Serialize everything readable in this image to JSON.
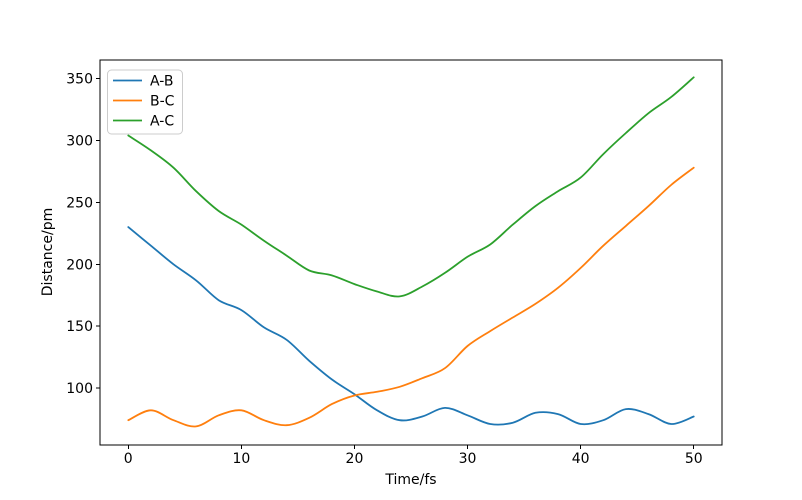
{
  "chart_data": {
    "type": "line",
    "title": "",
    "xlabel": "Time/fs",
    "ylabel": "Distance/pm",
    "x": [
      0,
      2,
      4,
      6,
      8,
      10,
      12,
      14,
      16,
      18,
      20,
      22,
      24,
      26,
      28,
      30,
      32,
      34,
      36,
      38,
      40,
      42,
      44,
      46,
      48,
      50
    ],
    "series": [
      {
        "name": "A-B",
        "color": "#1f77b4",
        "values": [
          230,
          215,
          200,
          187,
          171,
          163,
          149,
          139,
          122,
          107,
          95,
          82,
          74,
          77,
          84,
          78,
          71,
          72,
          80,
          79,
          71,
          74,
          83,
          79,
          71,
          77
        ]
      },
      {
        "name": "B-C",
        "color": "#ff7f0e",
        "values": [
          74,
          82,
          74,
          69,
          78,
          82,
          74,
          70,
          76,
          87,
          94,
          97,
          101,
          108,
          116,
          134,
          146,
          157,
          168,
          181,
          197,
          215,
          231,
          247,
          264,
          278
        ]
      },
      {
        "name": "A-C",
        "color": "#2ca02c",
        "values": [
          304,
          292,
          278,
          259,
          243,
          232,
          219,
          207,
          195,
          191,
          184,
          178,
          174,
          182,
          193,
          206,
          216,
          232,
          247,
          259,
          270,
          289,
          306,
          322,
          335,
          351
        ]
      }
    ],
    "xlim": [
      -2.5,
      52.5
    ],
    "ylim": [
      54,
      365
    ],
    "xticks": [
      0,
      10,
      20,
      30,
      40,
      50
    ],
    "yticks": [
      100,
      150,
      200,
      250,
      300,
      350
    ],
    "grid": false,
    "legend": {
      "position": "upper-left",
      "entries": [
        "A-B",
        "B-C",
        "A-C"
      ]
    },
    "axis_color": "#000000",
    "legend_border_color": "#cccccc",
    "background_color": "#ffffff"
  }
}
